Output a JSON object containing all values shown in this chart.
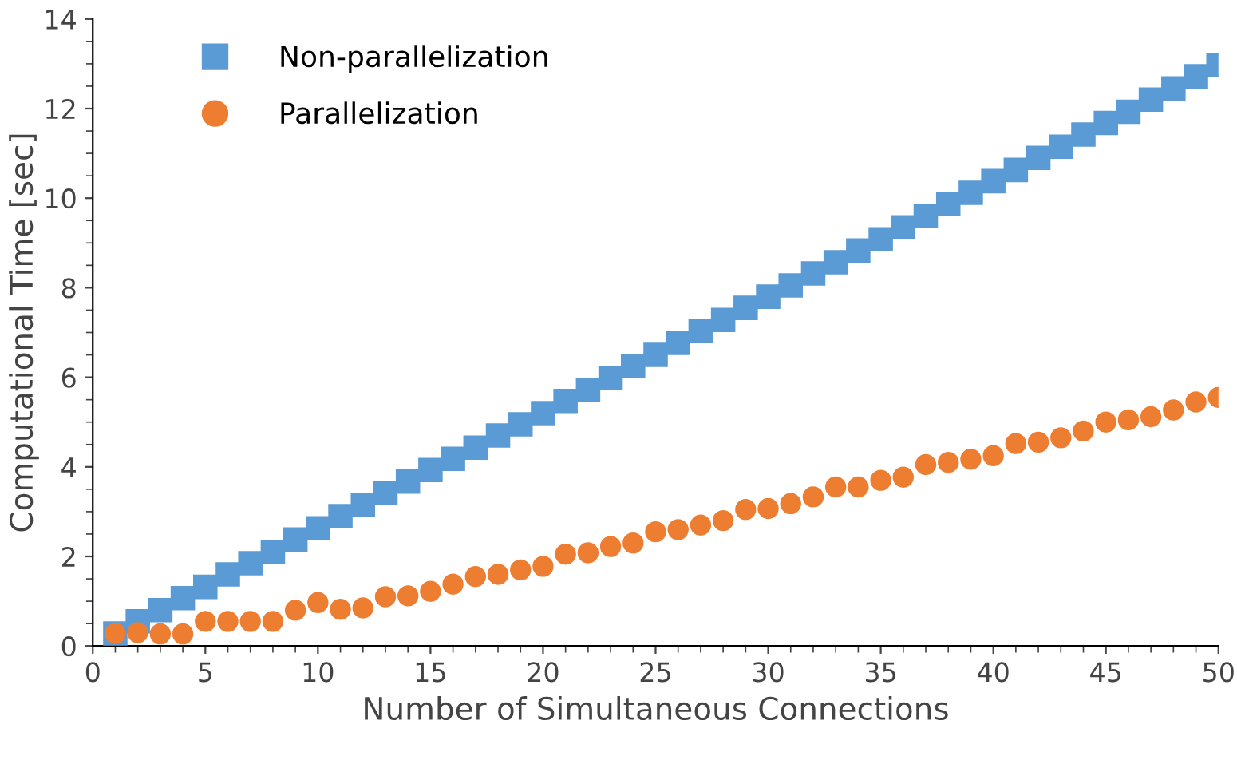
{
  "chart_data": {
    "type": "scatter",
    "xlabel": "Number of Simultaneous Connections",
    "ylabel": "Computational Time [sec]",
    "x": [
      1,
      2,
      3,
      4,
      5,
      6,
      7,
      8,
      9,
      10,
      11,
      12,
      13,
      14,
      15,
      16,
      17,
      18,
      19,
      20,
      21,
      22,
      23,
      24,
      25,
      26,
      27,
      28,
      29,
      30,
      31,
      32,
      33,
      34,
      35,
      36,
      37,
      38,
      39,
      40,
      41,
      42,
      43,
      44,
      45,
      46,
      47,
      48,
      49,
      50
    ],
    "series": [
      {
        "name": "Non-parallelization",
        "color": "#5b9bd5",
        "marker": "square",
        "values": [
          0.28,
          0.55,
          0.8,
          1.07,
          1.32,
          1.6,
          1.85,
          2.1,
          2.38,
          2.63,
          2.9,
          3.15,
          3.42,
          3.67,
          3.93,
          4.18,
          4.43,
          4.7,
          4.95,
          5.2,
          5.47,
          5.72,
          5.98,
          6.25,
          6.5,
          6.77,
          7.03,
          7.28,
          7.55,
          7.8,
          8.05,
          8.32,
          8.57,
          8.83,
          9.08,
          9.35,
          9.6,
          9.87,
          10.12,
          10.38,
          10.63,
          10.9,
          11.15,
          11.42,
          11.68,
          11.93,
          12.2,
          12.45,
          12.72,
          12.97
        ]
      },
      {
        "name": "Parallelization",
        "color": "#ed7d31",
        "marker": "circle",
        "values": [
          0.28,
          0.3,
          0.27,
          0.27,
          0.55,
          0.55,
          0.55,
          0.55,
          0.8,
          0.97,
          0.82,
          0.85,
          1.1,
          1.12,
          1.22,
          1.38,
          1.55,
          1.6,
          1.7,
          1.78,
          2.05,
          2.08,
          2.22,
          2.3,
          2.55,
          2.6,
          2.7,
          2.8,
          3.05,
          3.07,
          3.18,
          3.33,
          3.55,
          3.55,
          3.7,
          3.77,
          4.05,
          4.1,
          4.17,
          4.25,
          4.52,
          4.55,
          4.65,
          4.8,
          5.0,
          5.05,
          5.12,
          5.27,
          5.45,
          5.55
        ]
      }
    ],
    "xlim": [
      0,
      50
    ],
    "xticks": [
      0,
      5,
      10,
      15,
      20,
      25,
      30,
      35,
      40,
      45,
      50
    ],
    "ylim": [
      0,
      14
    ],
    "yticks": [
      0,
      2,
      4,
      6,
      8,
      10,
      12,
      14
    ],
    "grid": false,
    "legend": "top left"
  }
}
